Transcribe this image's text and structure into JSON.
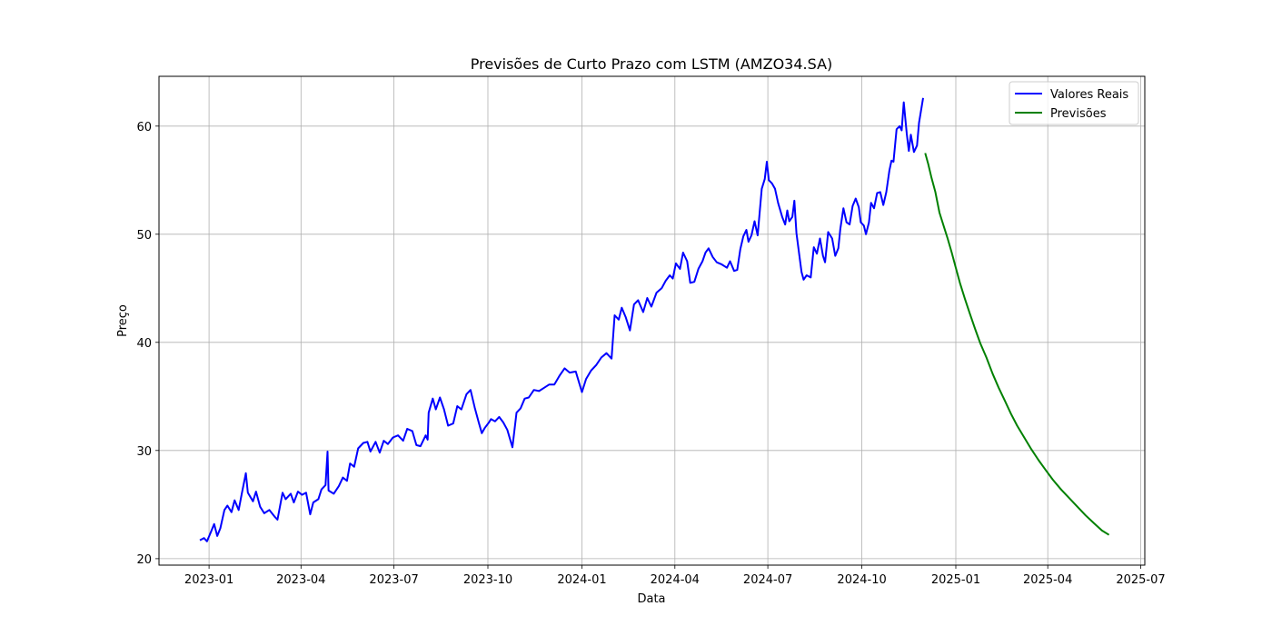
{
  "chart_data": {
    "type": "line",
    "title": "Previsões de Curto Prazo com LSTM (AMZO34.SA)",
    "xlabel": "Data",
    "ylabel": "Preço",
    "xlim": [
      "2022-11-13",
      "2025-07-05"
    ],
    "ylim": [
      19.4,
      64.6
    ],
    "x_ticks": [
      "2023-01-01",
      "2023-04-01",
      "2023-07-01",
      "2023-10-01",
      "2024-01-01",
      "2024-04-01",
      "2024-07-01",
      "2024-10-01",
      "2025-01-01",
      "2025-04-01",
      "2025-07-01"
    ],
    "x_tick_labels": [
      "2023-01",
      "2023-04",
      "2023-07",
      "2023-10",
      "2024-01",
      "2024-04",
      "2024-07",
      "2024-10",
      "2025-01",
      "2025-04",
      "2025-07"
    ],
    "y_ticks": [
      20,
      30,
      40,
      50,
      60
    ],
    "y_tick_labels": [
      "20",
      "30",
      "40",
      "50",
      "60"
    ],
    "grid": true,
    "legend_position": "top-right",
    "series": [
      {
        "name": "Valores Reais",
        "color": "#0000ff",
        "points": [
          [
            "2022-12-23",
            21.7
          ],
          [
            "2022-12-27",
            21.9
          ],
          [
            "2022-12-30",
            21.6
          ],
          [
            "2023-01-03",
            22.5
          ],
          [
            "2023-01-06",
            23.2
          ],
          [
            "2023-01-09",
            22.1
          ],
          [
            "2023-01-12",
            22.8
          ],
          [
            "2023-01-16",
            24.5
          ],
          [
            "2023-01-19",
            24.9
          ],
          [
            "2023-01-23",
            24.3
          ],
          [
            "2023-01-26",
            25.4
          ],
          [
            "2023-01-30",
            24.5
          ],
          [
            "2023-02-02",
            26.0
          ],
          [
            "2023-02-06",
            27.9
          ],
          [
            "2023-02-08",
            26.1
          ],
          [
            "2023-02-13",
            25.3
          ],
          [
            "2023-02-16",
            26.2
          ],
          [
            "2023-02-20",
            24.8
          ],
          [
            "2023-02-24",
            24.2
          ],
          [
            "2023-03-01",
            24.5
          ],
          [
            "2023-03-06",
            23.9
          ],
          [
            "2023-03-09",
            23.6
          ],
          [
            "2023-03-14",
            26.1
          ],
          [
            "2023-03-17",
            25.5
          ],
          [
            "2023-03-22",
            26.0
          ],
          [
            "2023-03-25",
            25.2
          ],
          [
            "2023-03-29",
            26.2
          ],
          [
            "2023-04-02",
            25.9
          ],
          [
            "2023-04-06",
            26.1
          ],
          [
            "2023-04-10",
            24.1
          ],
          [
            "2023-04-13",
            25.2
          ],
          [
            "2023-04-18",
            25.5
          ],
          [
            "2023-04-21",
            26.4
          ],
          [
            "2023-04-25",
            26.8
          ],
          [
            "2023-04-27",
            29.9
          ],
          [
            "2023-04-28",
            26.3
          ],
          [
            "2023-05-03",
            26.0
          ],
          [
            "2023-05-08",
            26.7
          ],
          [
            "2023-05-12",
            27.5
          ],
          [
            "2023-05-16",
            27.2
          ],
          [
            "2023-05-19",
            28.8
          ],
          [
            "2023-05-23",
            28.5
          ],
          [
            "2023-05-27",
            30.2
          ],
          [
            "2023-06-01",
            30.7
          ],
          [
            "2023-06-05",
            30.8
          ],
          [
            "2023-06-08",
            29.9
          ],
          [
            "2023-06-13",
            30.8
          ],
          [
            "2023-06-17",
            29.8
          ],
          [
            "2023-06-21",
            30.9
          ],
          [
            "2023-06-25",
            30.6
          ],
          [
            "2023-06-30",
            31.2
          ],
          [
            "2023-07-05",
            31.4
          ],
          [
            "2023-07-10",
            30.9
          ],
          [
            "2023-07-14",
            32.0
          ],
          [
            "2023-07-19",
            31.8
          ],
          [
            "2023-07-23",
            30.5
          ],
          [
            "2023-07-27",
            30.4
          ],
          [
            "2023-08-01",
            31.4
          ],
          [
            "2023-08-03",
            31.0
          ],
          [
            "2023-08-04",
            33.5
          ],
          [
            "2023-08-08",
            34.8
          ],
          [
            "2023-08-11",
            33.8
          ],
          [
            "2023-08-15",
            34.9
          ],
          [
            "2023-08-19",
            33.8
          ],
          [
            "2023-08-23",
            32.3
          ],
          [
            "2023-08-28",
            32.5
          ],
          [
            "2023-09-01",
            34.1
          ],
          [
            "2023-09-05",
            33.8
          ],
          [
            "2023-09-10",
            35.2
          ],
          [
            "2023-09-14",
            35.6
          ],
          [
            "2023-09-18",
            34.0
          ],
          [
            "2023-09-22",
            32.6
          ],
          [
            "2023-09-25",
            31.6
          ],
          [
            "2023-09-28",
            32.1
          ],
          [
            "2023-10-02",
            32.6
          ],
          [
            "2023-10-04",
            32.9
          ],
          [
            "2023-10-08",
            32.7
          ],
          [
            "2023-10-12",
            33.1
          ],
          [
            "2023-10-16",
            32.6
          ],
          [
            "2023-10-20",
            31.9
          ],
          [
            "2023-10-25",
            30.3
          ],
          [
            "2023-10-29",
            33.5
          ],
          [
            "2023-11-02",
            33.9
          ],
          [
            "2023-11-06",
            34.8
          ],
          [
            "2023-11-10",
            34.9
          ],
          [
            "2023-11-15",
            35.6
          ],
          [
            "2023-11-20",
            35.5
          ],
          [
            "2023-11-25",
            35.8
          ],
          [
            "2023-11-30",
            36.1
          ],
          [
            "2023-12-05",
            36.1
          ],
          [
            "2023-12-10",
            36.9
          ],
          [
            "2023-12-15",
            37.6
          ],
          [
            "2023-12-20",
            37.2
          ],
          [
            "2023-12-26",
            37.3
          ],
          [
            "2024-01-01",
            35.4
          ],
          [
            "2024-01-05",
            36.6
          ],
          [
            "2024-01-10",
            37.4
          ],
          [
            "2024-01-15",
            37.9
          ],
          [
            "2024-01-20",
            38.6
          ],
          [
            "2024-01-25",
            39.0
          ],
          [
            "2024-01-30",
            38.5
          ],
          [
            "2024-02-02",
            42.5
          ],
          [
            "2024-02-06",
            42.1
          ],
          [
            "2024-02-09",
            43.2
          ],
          [
            "2024-02-13",
            42.3
          ],
          [
            "2024-02-17",
            41.1
          ],
          [
            "2024-02-21",
            43.5
          ],
          [
            "2024-02-25",
            43.9
          ],
          [
            "2024-03-01",
            42.8
          ],
          [
            "2024-03-05",
            44.1
          ],
          [
            "2024-03-09",
            43.3
          ],
          [
            "2024-03-14",
            44.6
          ],
          [
            "2024-03-19",
            45.0
          ],
          [
            "2024-03-23",
            45.7
          ],
          [
            "2024-03-27",
            46.2
          ],
          [
            "2024-03-30",
            45.9
          ],
          [
            "2024-04-02",
            47.3
          ],
          [
            "2024-04-06",
            46.8
          ],
          [
            "2024-04-09",
            48.3
          ],
          [
            "2024-04-13",
            47.5
          ],
          [
            "2024-04-16",
            45.5
          ],
          [
            "2024-04-20",
            45.6
          ],
          [
            "2024-04-24",
            46.8
          ],
          [
            "2024-04-28",
            47.5
          ],
          [
            "2024-05-01",
            48.3
          ],
          [
            "2024-05-04",
            48.7
          ],
          [
            "2024-05-08",
            47.9
          ],
          [
            "2024-05-12",
            47.4
          ],
          [
            "2024-05-17",
            47.2
          ],
          [
            "2024-05-22",
            46.9
          ],
          [
            "2024-05-25",
            47.5
          ],
          [
            "2024-05-29",
            46.6
          ],
          [
            "2024-06-01",
            46.7
          ],
          [
            "2024-06-04",
            48.6
          ],
          [
            "2024-06-07",
            49.8
          ],
          [
            "2024-06-10",
            50.4
          ],
          [
            "2024-06-12",
            49.3
          ],
          [
            "2024-06-15",
            49.9
          ],
          [
            "2024-06-18",
            51.2
          ],
          [
            "2024-06-21",
            49.9
          ],
          [
            "2024-06-25",
            54.2
          ],
          [
            "2024-06-28",
            55.1
          ],
          [
            "2024-06-30",
            56.7
          ],
          [
            "2024-07-02",
            55.0
          ],
          [
            "2024-07-05",
            54.7
          ],
          [
            "2024-07-08",
            54.2
          ],
          [
            "2024-07-11",
            52.9
          ],
          [
            "2024-07-15",
            51.6
          ],
          [
            "2024-07-18",
            50.9
          ],
          [
            "2024-07-20",
            52.2
          ],
          [
            "2024-07-22",
            51.2
          ],
          [
            "2024-07-25",
            51.6
          ],
          [
            "2024-07-27",
            53.1
          ],
          [
            "2024-07-29",
            50.1
          ],
          [
            "2024-08-01",
            47.9
          ],
          [
            "2024-08-03",
            46.5
          ],
          [
            "2024-08-05",
            45.8
          ],
          [
            "2024-08-08",
            46.2
          ],
          [
            "2024-08-12",
            46.0
          ],
          [
            "2024-08-15",
            48.8
          ],
          [
            "2024-08-18",
            48.2
          ],
          [
            "2024-08-21",
            49.6
          ],
          [
            "2024-08-24",
            48.0
          ],
          [
            "2024-08-26",
            47.4
          ],
          [
            "2024-08-29",
            50.2
          ],
          [
            "2024-09-02",
            49.6
          ],
          [
            "2024-09-05",
            48.0
          ],
          [
            "2024-09-08",
            48.7
          ],
          [
            "2024-09-10",
            50.5
          ],
          [
            "2024-09-13",
            52.4
          ],
          [
            "2024-09-16",
            51.1
          ],
          [
            "2024-09-19",
            50.9
          ],
          [
            "2024-09-22",
            52.6
          ],
          [
            "2024-09-25",
            53.3
          ],
          [
            "2024-09-28",
            52.5
          ],
          [
            "2024-09-30",
            51.1
          ],
          [
            "2024-10-03",
            50.8
          ],
          [
            "2024-10-05",
            50.0
          ],
          [
            "2024-10-08",
            51.1
          ],
          [
            "2024-10-10",
            52.9
          ],
          [
            "2024-10-13",
            52.4
          ],
          [
            "2024-10-16",
            53.8
          ],
          [
            "2024-10-19",
            53.9
          ],
          [
            "2024-10-22",
            52.7
          ],
          [
            "2024-10-25",
            53.9
          ],
          [
            "2024-10-28",
            55.9
          ],
          [
            "2024-10-30",
            56.8
          ],
          [
            "2024-11-01",
            56.7
          ],
          [
            "2024-11-04",
            59.7
          ],
          [
            "2024-11-07",
            60.0
          ],
          [
            "2024-11-09",
            59.6
          ],
          [
            "2024-11-11",
            62.2
          ],
          [
            "2024-11-14",
            59.3
          ],
          [
            "2024-11-16",
            57.7
          ],
          [
            "2024-11-18",
            59.2
          ],
          [
            "2024-11-21",
            57.6
          ],
          [
            "2024-11-24",
            58.2
          ],
          [
            "2024-11-26",
            60.3
          ],
          [
            "2024-11-30",
            62.6
          ]
        ]
      },
      {
        "name": "Previsões",
        "color": "#008000",
        "points": [
          [
            "2024-12-02",
            57.5
          ],
          [
            "2024-12-05",
            56.5
          ],
          [
            "2024-12-08",
            55.3
          ],
          [
            "2024-12-12",
            53.9
          ],
          [
            "2024-12-16",
            52.0
          ],
          [
            "2024-12-20",
            50.8
          ],
          [
            "2024-12-24",
            49.6
          ],
          [
            "2024-12-28",
            48.3
          ],
          [
            "2025-01-01",
            46.9
          ],
          [
            "2025-01-05",
            45.5
          ],
          [
            "2025-01-10",
            44.0
          ],
          [
            "2025-01-15",
            42.6
          ],
          [
            "2025-01-20",
            41.2
          ],
          [
            "2025-01-25",
            39.9
          ],
          [
            "2025-01-31",
            38.6
          ],
          [
            "2025-02-06",
            37.1
          ],
          [
            "2025-02-12",
            35.8
          ],
          [
            "2025-02-18",
            34.6
          ],
          [
            "2025-02-24",
            33.4
          ],
          [
            "2025-03-02",
            32.3
          ],
          [
            "2025-03-09",
            31.2
          ],
          [
            "2025-03-16",
            30.1
          ],
          [
            "2025-03-23",
            29.1
          ],
          [
            "2025-03-30",
            28.2
          ],
          [
            "2025-04-06",
            27.3
          ],
          [
            "2025-04-14",
            26.4
          ],
          [
            "2025-04-22",
            25.6
          ],
          [
            "2025-04-30",
            24.8
          ],
          [
            "2025-05-08",
            24.0
          ],
          [
            "2025-05-16",
            23.3
          ],
          [
            "2025-05-24",
            22.6
          ],
          [
            "2025-05-31",
            22.2
          ]
        ]
      }
    ]
  }
}
